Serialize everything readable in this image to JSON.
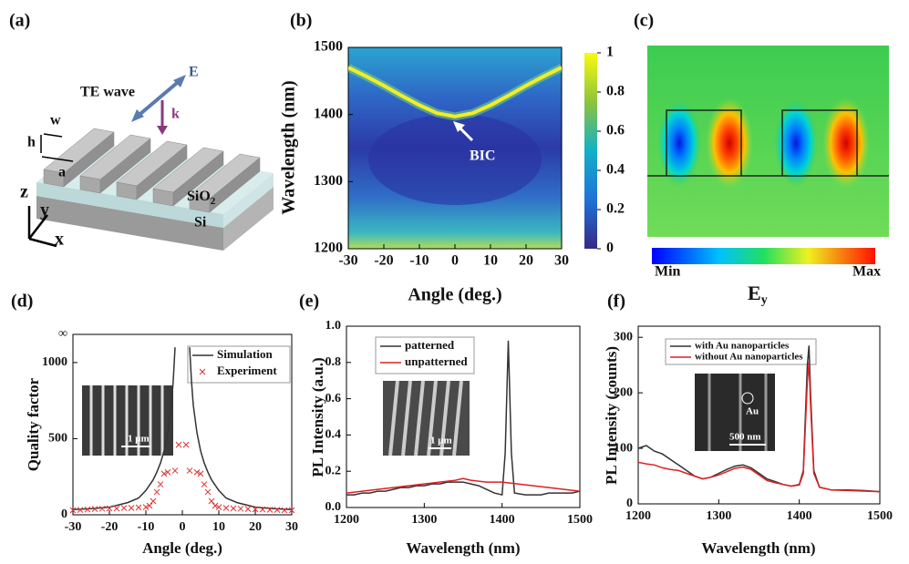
{
  "schematic": {
    "label": "(a)",
    "wave": "TE wave",
    "E": "E",
    "k": "k",
    "w": "w",
    "h": "h",
    "a": "a",
    "sio": "SiO",
    "sio_sub": "2",
    "si": "Si",
    "z": "z",
    "y": "y",
    "x": "x"
  },
  "field_map": {
    "label": "(c)",
    "min": "Min",
    "max": "Max",
    "field": "E",
    "field_sub": "y"
  },
  "chart_data": [
    {
      "type": "heatmap",
      "panel_label": "(b)",
      "xlabel": "Angle (deg.)",
      "ylabel": "Wavelength (nm)",
      "xlim": [
        -30,
        30
      ],
      "xticks": [
        -30,
        -20,
        -10,
        0,
        10,
        20,
        30
      ],
      "ylim": [
        1200,
        1500
      ],
      "yticks": [
        1200,
        1300,
        1400,
        1500
      ],
      "colorbar": {
        "lim": [
          0,
          1
        ],
        "ticks": [
          0,
          0.2,
          0.4,
          0.6,
          0.8,
          1
        ]
      },
      "annotation": "BIC",
      "band": {
        "color": "#f4ec2a",
        "x": [
          -30,
          -25,
          -20,
          -15,
          -10,
          -5,
          0,
          5,
          10,
          15,
          20,
          25,
          30
        ],
        "values": [
          1470,
          1457,
          1443,
          1428,
          1414,
          1402,
          1397,
          1402,
          1414,
          1428,
          1443,
          1457,
          1470
        ]
      }
    },
    {
      "type": "line",
      "panel_label": "(d)",
      "xlabel": "Angle (deg.)",
      "ylabel": "Quality factor",
      "xlim": [
        -30,
        30
      ],
      "xticks": [
        -30,
        -20,
        -10,
        0,
        10,
        20,
        30
      ],
      "ylim": [
        0,
        1185
      ],
      "yticks": [
        0,
        500,
        1000,
        {
          "value": 1185,
          "label": "∞"
        }
      ],
      "inset_scale": "1 μm",
      "series": [
        {
          "name": "Simulation",
          "color": "#333333",
          "style": "line",
          "x": [
            -30,
            -25,
            -20,
            -15,
            -12,
            -10,
            -8,
            -7,
            -6,
            -5,
            -4,
            -3,
            -2.5,
            -2,
            0,
            2,
            2.5,
            3,
            4,
            5,
            6,
            7,
            8,
            10,
            12,
            15,
            20,
            25,
            30
          ],
          "values": [
            35,
            40,
            50,
            80,
            110,
            160,
            230,
            280,
            340,
            420,
            540,
            720,
            880,
            1100,
            null,
            1100,
            880,
            720,
            540,
            420,
            340,
            280,
            230,
            160,
            110,
            80,
            50,
            40,
            35
          ]
        },
        {
          "name": "Experiment",
          "color": "#e03030",
          "style": "cross",
          "x": [
            -30,
            -28,
            -26,
            -24,
            -22,
            -20,
            -18,
            -16,
            -14,
            -12,
            -10,
            -9,
            -8,
            -7,
            -6,
            -5,
            -4,
            -2,
            -1,
            1,
            2,
            4,
            5,
            6,
            7,
            8,
            9,
            10,
            12,
            14,
            16,
            18,
            20,
            22,
            24,
            26,
            28,
            30
          ],
          "values": [
            30,
            32,
            35,
            38,
            40,
            42,
            42,
            45,
            45,
            48,
            50,
            60,
            90,
            150,
            200,
            270,
            280,
            290,
            460,
            460,
            290,
            280,
            270,
            200,
            150,
            90,
            60,
            50,
            45,
            42,
            40,
            38,
            36,
            35,
            33,
            32,
            30,
            30
          ]
        }
      ]
    },
    {
      "type": "line",
      "panel_label": "(e)",
      "xlabel": "Wavelength (nm)",
      "ylabel": "PL Intensity (a.u.)",
      "xlim": [
        1200,
        1500
      ],
      "xticks": [
        1200,
        1300,
        1400,
        1500
      ],
      "ylim": [
        0,
        1
      ],
      "yticks": [
        {
          "value": 0,
          "label": "0.0"
        },
        0.2,
        0.4,
        0.6,
        0.8,
        {
          "value": 1,
          "label": "1.0"
        }
      ],
      "inset_scale": "1 μm",
      "series": [
        {
          "name": "patterned",
          "color": "#333333",
          "style": "line",
          "x": [
            1200,
            1210,
            1220,
            1230,
            1240,
            1250,
            1260,
            1270,
            1280,
            1290,
            1300,
            1310,
            1320,
            1330,
            1340,
            1350,
            1360,
            1370,
            1380,
            1390,
            1400,
            1404,
            1408,
            1412,
            1416,
            1430,
            1440,
            1450,
            1460,
            1470,
            1480,
            1490,
            1500
          ],
          "values": [
            0.07,
            0.07,
            0.08,
            0.08,
            0.09,
            0.09,
            0.1,
            0.11,
            0.11,
            0.12,
            0.12,
            0.13,
            0.13,
            0.14,
            0.14,
            0.14,
            0.13,
            0.12,
            0.1,
            0.08,
            0.07,
            0.3,
            0.92,
            0.3,
            0.08,
            0.07,
            0.07,
            0.07,
            0.08,
            0.08,
            0.08,
            0.08,
            0.09
          ]
        },
        {
          "name": "unpatterned",
          "color": "#e02020",
          "style": "line",
          "x": [
            1200,
            1220,
            1240,
            1260,
            1280,
            1300,
            1320,
            1340,
            1350,
            1360,
            1380,
            1400,
            1420,
            1440,
            1460,
            1480,
            1500
          ],
          "values": [
            0.08,
            0.09,
            0.1,
            0.11,
            0.12,
            0.13,
            0.14,
            0.15,
            0.16,
            0.15,
            0.14,
            0.14,
            0.13,
            0.12,
            0.11,
            0.1,
            0.09
          ]
        }
      ]
    },
    {
      "type": "line",
      "panel_label": "(f)",
      "xlabel": "Wavelength (nm)",
      "ylabel": "PL Intensity (counts)",
      "xlim": [
        1200,
        1500
      ],
      "xticks": [
        1200,
        1300,
        1400,
        1500
      ],
      "ylim": [
        0,
        320
      ],
      "yticks": [
        0,
        100,
        200,
        300
      ],
      "inset_scale": "500 nm",
      "inset_note": "Au",
      "series": [
        {
          "name": "with Au nanoparticles",
          "color": "#333333",
          "style": "line",
          "x": [
            1200,
            1210,
            1220,
            1230,
            1240,
            1250,
            1260,
            1270,
            1280,
            1290,
            1300,
            1310,
            1320,
            1330,
            1340,
            1350,
            1360,
            1370,
            1380,
            1390,
            1400,
            1405,
            1410,
            1412,
            1414,
            1418,
            1425,
            1440,
            1460,
            1480,
            1500
          ],
          "values": [
            100,
            105,
            95,
            90,
            80,
            70,
            60,
            50,
            45,
            48,
            55,
            62,
            68,
            70,
            65,
            55,
            45,
            40,
            35,
            32,
            35,
            60,
            250,
            285,
            200,
            60,
            30,
            25,
            25,
            24,
            22
          ]
        },
        {
          "name": "without Au nanoparticles",
          "color": "#e02020",
          "style": "line",
          "x": [
            1200,
            1210,
            1220,
            1230,
            1240,
            1250,
            1260,
            1270,
            1280,
            1290,
            1300,
            1310,
            1320,
            1330,
            1340,
            1350,
            1360,
            1370,
            1380,
            1390,
            1400,
            1405,
            1410,
            1412,
            1414,
            1418,
            1425,
            1440,
            1460,
            1480,
            1500
          ],
          "values": [
            75,
            72,
            70,
            65,
            62,
            60,
            55,
            50,
            45,
            48,
            52,
            58,
            64,
            66,
            62,
            52,
            42,
            38,
            35,
            32,
            34,
            55,
            220,
            255,
            180,
            55,
            30,
            25,
            24,
            23,
            22
          ]
        }
      ]
    }
  ]
}
